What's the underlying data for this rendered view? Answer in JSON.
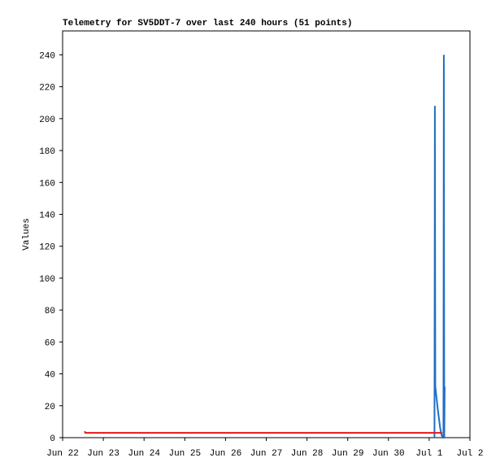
{
  "chart_data": {
    "type": "line",
    "title": "Telemetry for SV5DDT-7 over last 240 hours (51 points)",
    "y_label": "Values",
    "xlim": [
      0,
      10
    ],
    "xticks": [
      {
        "value": 0,
        "label": "Jun 22"
      },
      {
        "value": 1,
        "label": "Jun 23"
      },
      {
        "value": 2,
        "label": "Jun 24"
      },
      {
        "value": 3,
        "label": "Jun 25"
      },
      {
        "value": 4,
        "label": "Jun 26"
      },
      {
        "value": 5,
        "label": "Jun 27"
      },
      {
        "value": 6,
        "label": "Jun 28"
      },
      {
        "value": 7,
        "label": "Jun 29"
      },
      {
        "value": 8,
        "label": "Jun 30"
      },
      {
        "value": 9,
        "label": "Jul 1"
      },
      {
        "value": 10,
        "label": "Jul 2"
      }
    ],
    "ylim": [
      0,
      255
    ],
    "yticks": [
      0,
      20,
      40,
      60,
      80,
      100,
      120,
      140,
      160,
      180,
      200,
      220,
      240
    ],
    "grid": false,
    "series": [
      {
        "color": "#1f6fc5",
        "x": [
          9.13,
          9.14,
          9.15,
          9.18,
          9.21,
          9.24,
          9.27,
          9.3,
          9.33,
          9.35,
          9.36,
          9.37,
          9.38
        ],
        "values": [
          0,
          208,
          32,
          25,
          18,
          12,
          6,
          2,
          0,
          0,
          240,
          0,
          32
        ]
      },
      {
        "color": "#e8161b",
        "x": [
          0.54,
          0.56,
          9.32
        ],
        "values": [
          4,
          3,
          3
        ]
      }
    ]
  }
}
